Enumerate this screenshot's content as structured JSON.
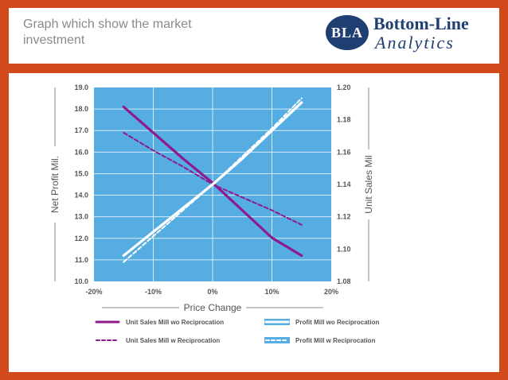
{
  "header": {
    "title": "Graph which show the market investment"
  },
  "logo": {
    "badge_text": "BLA",
    "line1": "Bottom-Line",
    "line2": "Analytics"
  },
  "colors": {
    "plot_bg": "#55ade2",
    "purple": "#8e1a8e",
    "white": "#ffffff",
    "axis_text": "#555555"
  },
  "chart_data": {
    "type": "line",
    "xlabel": "Price Change",
    "ylabel": "Net Profit Mil.",
    "y2label": "Unit Sales Mil",
    "xlim": [
      -20,
      20
    ],
    "ylim": [
      10.0,
      19.0
    ],
    "y2lim": [
      1.08,
      1.2
    ],
    "x_ticks": [
      "-20%",
      "-10%",
      "0%",
      "10%",
      "20%"
    ],
    "y_ticks": [
      "10.0",
      "11.0",
      "12.0",
      "13.0",
      "14.0",
      "15.0",
      "16.0",
      "17.0",
      "18.0",
      "19.0"
    ],
    "y2_ticks": [
      "1.08",
      "1.10",
      "1.12",
      "1.14",
      "1.16",
      "1.18",
      "1.20"
    ],
    "grid": true,
    "legend_position": "bottom",
    "series": [
      {
        "name": "Unit Sales Mill wo Reciprocation",
        "axis": "y2",
        "style": "solid",
        "color": "#8e1a8e",
        "x": [
          -15,
          -10,
          -5,
          0,
          5,
          10,
          15
        ],
        "y": [
          1.188,
          1.172,
          1.156,
          1.141,
          1.124,
          1.107,
          1.096
        ]
      },
      {
        "name": "Unit Sales Mill w Reciprocation",
        "axis": "y2",
        "style": "dashed",
        "color": "#8e1a8e",
        "x": [
          -15,
          -10,
          -5,
          0,
          5,
          10,
          15
        ],
        "y": [
          1.172,
          1.161,
          1.151,
          1.14,
          1.132,
          1.124,
          1.115
        ]
      },
      {
        "name": "Profit Mill wo Reciprocation",
        "axis": "y",
        "style": "solid",
        "color": "#ffffff",
        "x": [
          -15,
          -10,
          -5,
          0,
          5,
          10,
          15
        ],
        "y": [
          11.2,
          12.3,
          13.4,
          14.5,
          15.7,
          17.0,
          18.3
        ]
      },
      {
        "name": "Profit Mill w Reciprocation",
        "axis": "y",
        "style": "dashed",
        "color": "#ffffff",
        "x": [
          -15,
          -10,
          -5,
          0,
          5,
          10,
          15
        ],
        "y": [
          10.9,
          12.1,
          13.3,
          14.5,
          15.8,
          17.1,
          18.5
        ]
      }
    ]
  }
}
